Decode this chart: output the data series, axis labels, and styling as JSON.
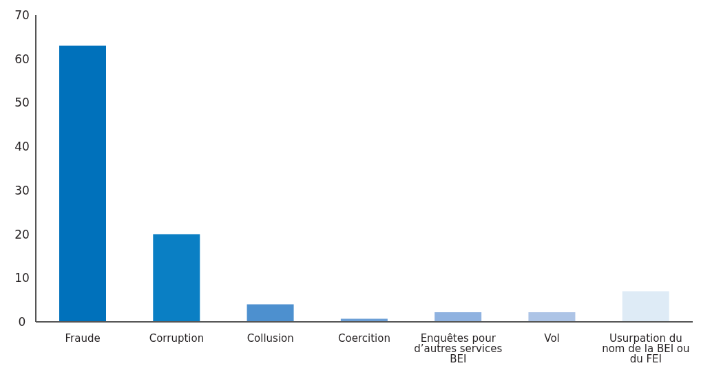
{
  "chart_data": {
    "type": "bar",
    "categories": [
      "Fraude",
      "Corruption",
      "Collusion",
      "Coercition",
      "Enquêtes pour d’autres services BEI",
      "Vol",
      "Usurpation du nom de la BEI ou du FEI"
    ],
    "values": [
      63,
      20,
      4,
      0.7,
      2.2,
      2.2,
      7
    ],
    "colors": [
      "#0071bb",
      "#0a7fc4",
      "#4d90cf",
      "#6c9fd6",
      "#8fb2e0",
      "#adc4e6",
      "#deebf6"
    ],
    "ylim": [
      0,
      70
    ],
    "yticks": [
      0,
      10,
      20,
      30,
      40,
      50,
      60,
      70
    ],
    "grid": false,
    "legend": false
  }
}
